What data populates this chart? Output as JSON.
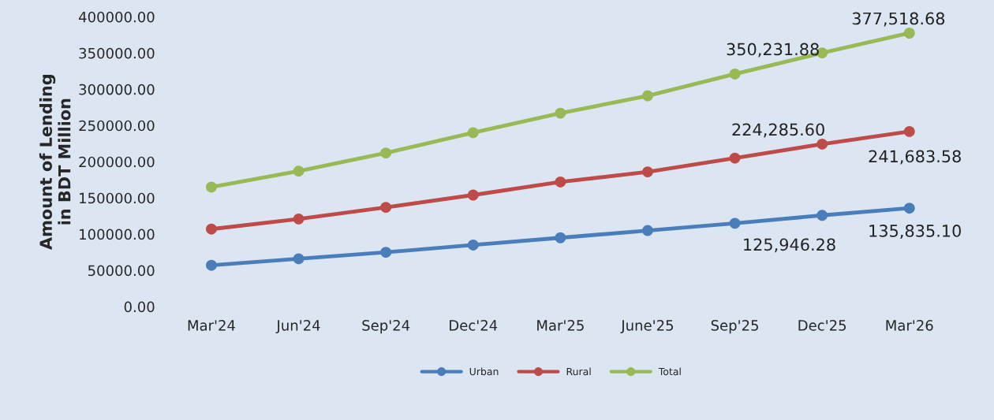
{
  "chart_data": {
    "type": "line",
    "ylabel": "Amount of Lending\nin BDT Million",
    "categories": [
      "Mar'24",
      "Jun'24",
      "Sep'24",
      "Dec'24",
      "Mar'25",
      "June'25",
      "Sep'25",
      "Dec'25",
      "Mar'26"
    ],
    "series": [
      {
        "name": "Urban",
        "color": "#4a7ebb",
        "values": [
          57000,
          66000,
          75000,
          85000,
          95000,
          105000,
          115000,
          125946.28,
          135835.1
        ],
        "value_labels": [
          null,
          null,
          null,
          null,
          null,
          null,
          null,
          "125,946.28",
          "135,835.10"
        ]
      },
      {
        "name": "Rural",
        "color": "#be4b48",
        "values": [
          107000,
          121000,
          137000,
          154000,
          172000,
          186000,
          205000,
          224285.6,
          241683.58
        ],
        "value_labels": [
          null,
          null,
          null,
          null,
          null,
          null,
          null,
          "224,285.60",
          "241,683.58"
        ]
      },
      {
        "name": "Total",
        "color": "#98b954",
        "values": [
          165000,
          187000,
          212000,
          240000,
          267000,
          291000,
          321000,
          350231.88,
          377518.68
        ],
        "value_labels": [
          null,
          null,
          null,
          null,
          null,
          null,
          null,
          "350,231.88",
          "377,518.68"
        ]
      }
    ],
    "ylim": [
      0,
      400000
    ],
    "yticks": [
      {
        "value": 0,
        "label": "0.00"
      },
      {
        "value": 50000,
        "label": "50000.00"
      },
      {
        "value": 100000,
        "label": "100000.00"
      },
      {
        "value": 150000,
        "label": "150000.00"
      },
      {
        "value": 200000,
        "label": "200000.00"
      },
      {
        "value": 250000,
        "label": "250000.00"
      },
      {
        "value": 300000,
        "label": "300000.00"
      },
      {
        "value": 350000,
        "label": "350000.00"
      },
      {
        "value": 400000,
        "label": "400000.00"
      }
    ],
    "grid": false,
    "legend": "bottom",
    "marker": "circle",
    "line_style": "solid"
  }
}
